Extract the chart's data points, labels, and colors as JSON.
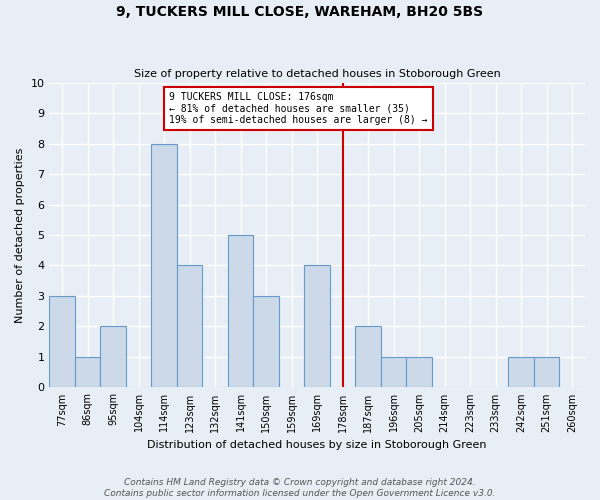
{
  "title": "9, TUCKERS MILL CLOSE, WAREHAM, BH20 5BS",
  "subtitle": "Size of property relative to detached houses in Stoborough Green",
  "xlabel": "Distribution of detached houses by size in Stoborough Green",
  "ylabel": "Number of detached properties",
  "footer": "Contains HM Land Registry data © Crown copyright and database right 2024.\nContains public sector information licensed under the Open Government Licence v3.0.",
  "bin_labels": [
    "77sqm",
    "86sqm",
    "95sqm",
    "104sqm",
    "114sqm",
    "123sqm",
    "132sqm",
    "141sqm",
    "150sqm",
    "159sqm",
    "169sqm",
    "178sqm",
    "187sqm",
    "196sqm",
    "205sqm",
    "214sqm",
    "223sqm",
    "233sqm",
    "242sqm",
    "251sqm",
    "260sqm"
  ],
  "bar_heights": [
    3,
    1,
    2,
    0,
    8,
    4,
    0,
    5,
    3,
    0,
    4,
    0,
    2,
    1,
    1,
    0,
    0,
    0,
    1,
    1,
    0
  ],
  "bar_color": "#ccd9e8",
  "bar_edge_color": "#6699cc",
  "background_color": "#e8eef5",
  "grid_color": "#ffffff",
  "ylim": [
    0,
    10
  ],
  "yticks": [
    0,
    1,
    2,
    3,
    4,
    5,
    6,
    7,
    8,
    9,
    10
  ],
  "property_line_index": 11,
  "annotation_text": "9 TUCKERS MILL CLOSE: 176sqm\n← 81% of detached houses are smaller (35)\n19% of semi-detached houses are larger (8) →",
  "annotation_box_color": "#ffffff",
  "annotation_border_color": "#cc0000",
  "vline_color": "#cc0000",
  "title_fontsize": 10,
  "subtitle_fontsize": 8,
  "ylabel_fontsize": 8,
  "xlabel_fontsize": 8,
  "tick_fontsize": 7,
  "footer_fontsize": 6.5
}
